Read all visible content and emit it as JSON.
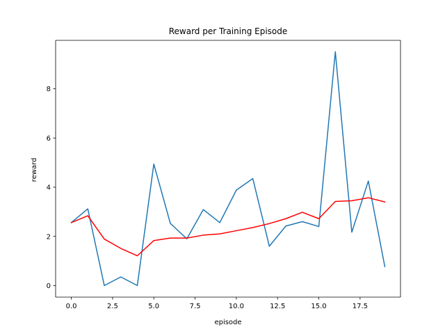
{
  "chart_data": {
    "type": "line",
    "title": "Reward per Training Episode",
    "xlabel": "episode",
    "ylabel": "reward",
    "xlim": [
      -0.95,
      19.95
    ],
    "ylim": [
      -0.47,
      9.97
    ],
    "xticks": [
      0.0,
      2.5,
      5.0,
      7.5,
      10.0,
      12.5,
      15.0,
      17.5
    ],
    "xtick_labels": [
      "0.0",
      "2.5",
      "5.0",
      "7.5",
      "10.0",
      "12.5",
      "15.0",
      "17.5"
    ],
    "yticks": [
      0,
      2,
      4,
      6,
      8
    ],
    "ytick_labels": [
      "0",
      "2",
      "4",
      "6",
      "8"
    ],
    "grid": false,
    "x": [
      0,
      1,
      2,
      3,
      4,
      5,
      6,
      7,
      8,
      9,
      10,
      11,
      12,
      13,
      14,
      15,
      16,
      17,
      18,
      19
    ],
    "series": [
      {
        "color": "#1f77b4",
        "values": [
          2.56,
          3.12,
          0.0,
          0.35,
          0.0,
          4.94,
          2.53,
          1.9,
          3.09,
          2.56,
          3.88,
          4.35,
          1.6,
          2.42,
          2.6,
          2.4,
          9.51,
          2.17,
          4.25,
          0.77
        ]
      },
      {
        "color": "#ff0000",
        "values": [
          2.56,
          2.84,
          1.89,
          1.51,
          1.21,
          1.83,
          1.93,
          1.93,
          2.05,
          2.1,
          2.23,
          2.36,
          2.52,
          2.72,
          2.98,
          2.72,
          3.42,
          3.45,
          3.57,
          3.4
        ]
      }
    ]
  }
}
